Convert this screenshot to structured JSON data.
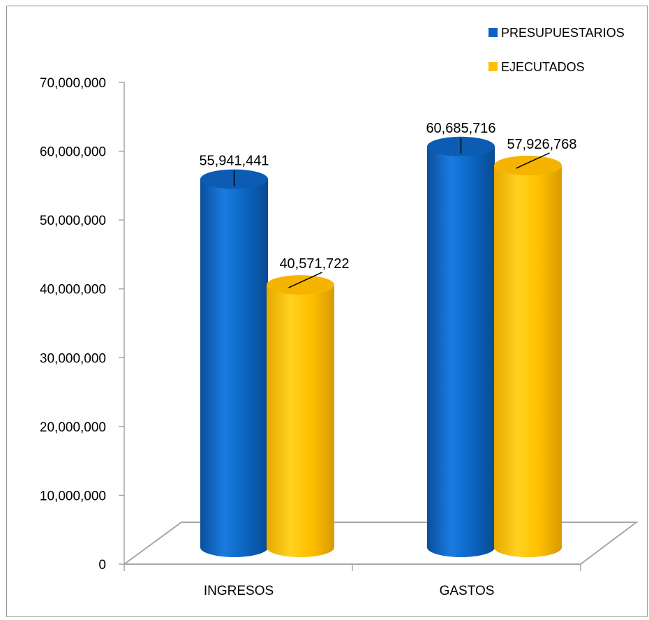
{
  "chart_data": {
    "type": "bar",
    "style": "3d-cylinder",
    "categories": [
      "INGRESOS",
      "GASTOS"
    ],
    "series": [
      {
        "name": "PRESUPUESTARIOS",
        "values": [
          55941441,
          60685716
        ],
        "color": "#0b64c0"
      },
      {
        "name": "EJECUTADOS",
        "values": [
          40571722,
          57926768
        ],
        "color": "#ffc000"
      }
    ],
    "data_labels": [
      [
        "55,941,441",
        "60,685,716"
      ],
      [
        "40,571,722",
        "57,926,768"
      ]
    ],
    "ylim": [
      0,
      70000000
    ],
    "yticks": [
      0,
      10000000,
      20000000,
      30000000,
      40000000,
      50000000,
      60000000,
      70000000
    ],
    "ytick_labels": [
      "0",
      "10,000,000",
      "20,000,000",
      "30,000,000",
      "40,000,000",
      "50,000,000",
      "60,000,000",
      "70,000,000"
    ],
    "legend_position": "top-right",
    "grid": false
  }
}
